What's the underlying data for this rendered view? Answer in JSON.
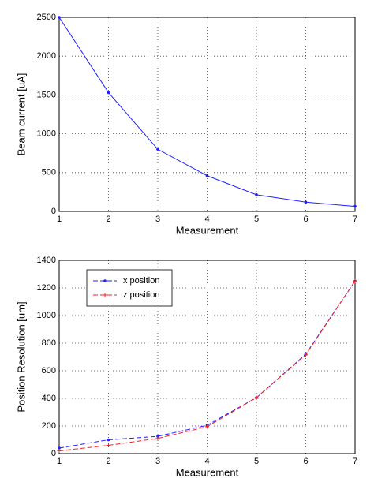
{
  "chart_data": [
    {
      "type": "line",
      "x": [
        1,
        2,
        3,
        4,
        5,
        6,
        7
      ],
      "xlabel": "Measurement",
      "ylabel": "Beam current [uA]",
      "xlim": [
        1,
        7
      ],
      "xticks": [
        1,
        2,
        3,
        4,
        5,
        6,
        7
      ],
      "ylim": [
        0,
        2500
      ],
      "yticks": [
        0,
        500,
        1000,
        1500,
        2000,
        2500
      ],
      "grid": true,
      "series": [
        {
          "color": "#1f1fff",
          "marker": "dot",
          "dash": "solid",
          "values": [
            2500,
            1530,
            800,
            460,
            215,
            120,
            65
          ]
        }
      ]
    },
    {
      "type": "line",
      "x": [
        1,
        2,
        3,
        4,
        5,
        6,
        7
      ],
      "xlabel": "Measurement",
      "ylabel": "Position Resolution [um]",
      "xlim": [
        1,
        7
      ],
      "xticks": [
        1,
        2,
        3,
        4,
        5,
        6,
        7
      ],
      "ylim": [
        0,
        1400
      ],
      "yticks": [
        0,
        200,
        400,
        600,
        800,
        1000,
        1200,
        1400
      ],
      "grid": true,
      "legend": "upper left",
      "series": [
        {
          "name": "x position",
          "color": "#1f1fff",
          "marker": "dot",
          "dash": "dashed",
          "values": [
            40,
            100,
            125,
            205,
            405,
            720,
            1250
          ]
        },
        {
          "name": "z position",
          "color": "#ff1f1f",
          "marker": "plus",
          "dash": "dashed",
          "values": [
            20,
            60,
            110,
            195,
            405,
            715,
            1250
          ]
        }
      ]
    }
  ]
}
